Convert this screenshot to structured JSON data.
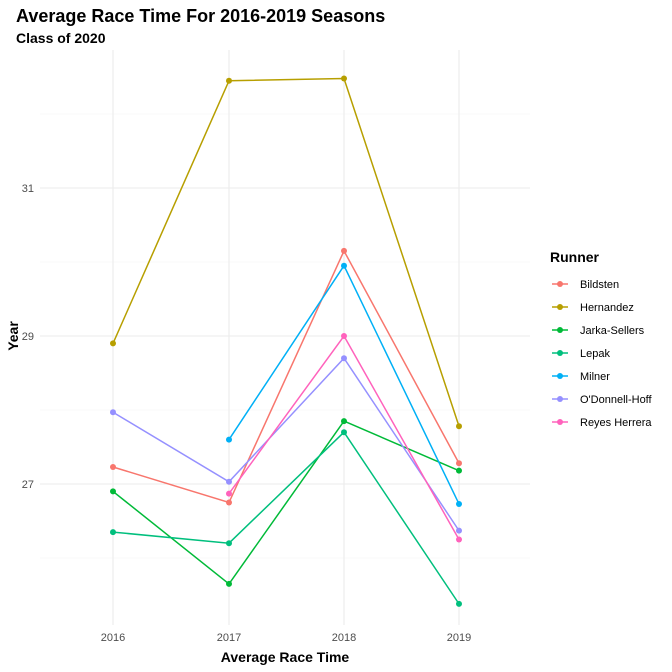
{
  "chart_data": {
    "type": "line",
    "title": "Average Race Time For 2016-2019 Seasons",
    "subtitle": "Class of 2020",
    "xlabel": "Average Race Time",
    "ylabel": "Year",
    "categories": [
      "2016",
      "2017",
      "2018",
      "2019"
    ],
    "y_ticks": [
      "27",
      "29",
      "31"
    ],
    "ylim": [
      24.5,
      33.5
    ],
    "grid": true,
    "legend": {
      "title": "Runner",
      "position": "right"
    },
    "series": [
      {
        "name": "Bildsten",
        "color": "#F8766D",
        "values": [
          27.23,
          26.75,
          30.15,
          27.28
        ]
      },
      {
        "name": "Hernandez",
        "color": "#B79F00",
        "values": [
          28.9,
          32.45,
          32.48,
          27.78
        ]
      },
      {
        "name": "Jarka-Sellers",
        "color": "#00BA38",
        "values": [
          26.9,
          25.65,
          27.85,
          27.18
        ]
      },
      {
        "name": "Lepak",
        "color": "#00BF7D",
        "values": [
          26.35,
          26.2,
          27.7,
          25.38
        ]
      },
      {
        "name": "Milner",
        "color": "#00B0F6",
        "values": [
          null,
          27.6,
          29.95,
          26.73
        ]
      },
      {
        "name": "O'Donnell-Hoff",
        "color": "#9590FF",
        "values": [
          27.97,
          27.03,
          28.7,
          26.37
        ]
      },
      {
        "name": "Reyes Herrera",
        "color": "#FF62BC",
        "values": [
          null,
          26.87,
          29.0,
          26.25
        ]
      }
    ]
  }
}
